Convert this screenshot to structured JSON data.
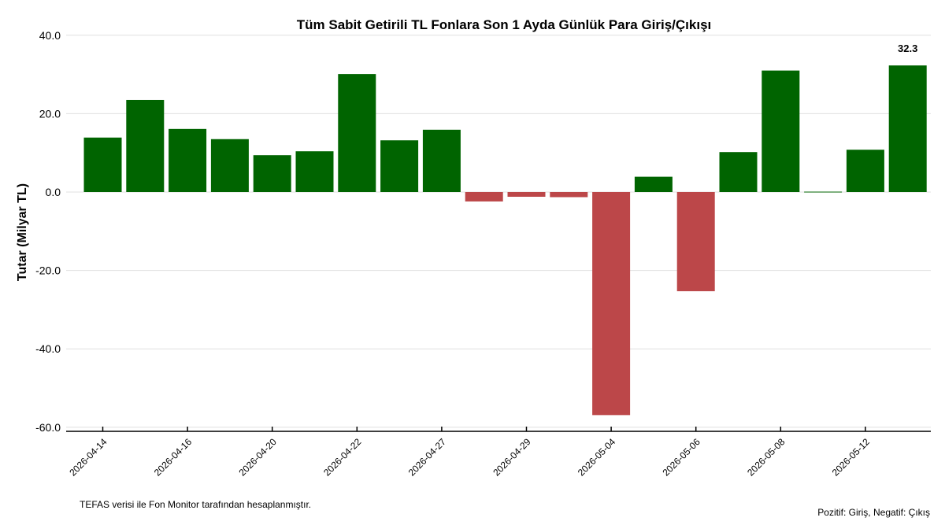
{
  "chart_data": {
    "type": "bar",
    "title": "Tüm Sabit Getirili TL Fonlara Son 1 Ayda Günlük Para Giriş/Çıkışı",
    "ylabel": "Tutar (Milyar TL)",
    "ylim": [
      -60,
      40
    ],
    "yticks": [
      "-60.0",
      "-40.0",
      "-20.0",
      "0.0",
      "20.0",
      "40.0"
    ],
    "grid": true,
    "xtick_labels": [
      "2026-04-14",
      "2026-04-16",
      "2026-04-20",
      "2026-04-22",
      "2026-04-27",
      "2026-04-29",
      "2026-05-04",
      "2026-05-06",
      "2026-05-08",
      "2026-05-12"
    ],
    "values": [
      13.9,
      23.5,
      16.1,
      13.5,
      9.4,
      10.4,
      30.1,
      13.2,
      15.9,
      -2.4,
      -1.2,
      -1.3,
      -56.9,
      3.9,
      -25.3,
      10.2,
      31.0,
      0.1,
      10.8,
      32.3
    ],
    "data_label": {
      "index": 19,
      "text": "32.3"
    },
    "colors": {
      "positive": "#006400",
      "negative": "#bc4749",
      "grid": "#e0e0e0"
    }
  },
  "footer": {
    "source": "TEFAS verisi ile Fon Monitor tarafından hesaplanmıştır.",
    "legend_note": "Pozitif: Giriş, Negatif: Çıkış"
  }
}
